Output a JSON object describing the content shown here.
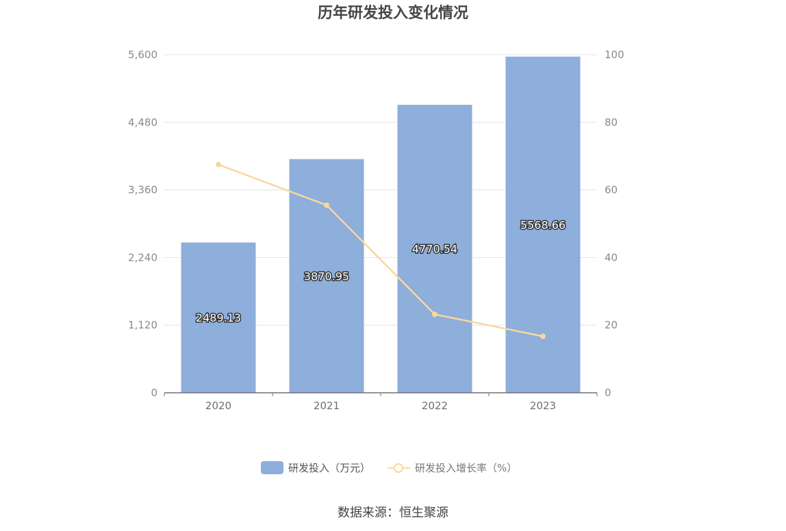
{
  "colors": {
    "bar": "#8eaedb",
    "line": "#f9d89b",
    "grid": "#e0e3ec",
    "axis": "#6e7079"
  },
  "chart_data": {
    "type": "bar",
    "title": "历年研发投入变化情况",
    "categories": [
      "2020",
      "2021",
      "2022",
      "2023"
    ],
    "series": [
      {
        "name": "研发投入（万元）",
        "type": "bar",
        "axis": "left",
        "values": [
          2489.13,
          3870.95,
          4770.54,
          5568.66
        ],
        "labels": [
          "2489.13",
          "3870.95",
          "4770.54",
          "5568.66"
        ]
      },
      {
        "name": "研发投入增长率（%）",
        "type": "line",
        "axis": "right",
        "values": [
          67.5,
          55.5,
          23.2,
          16.7
        ]
      }
    ],
    "y_left": {
      "range": [
        0,
        5600
      ],
      "ticks": [
        "0",
        "1,120",
        "2,240",
        "3,360",
        "4,480",
        "5,600"
      ]
    },
    "y_right": {
      "range": [
        0,
        100
      ],
      "ticks": [
        "0",
        "20",
        "40",
        "60",
        "80",
        "100"
      ]
    },
    "grid": true,
    "legend_position": "bottom-center"
  },
  "source_text": "数据来源：恒生聚源"
}
